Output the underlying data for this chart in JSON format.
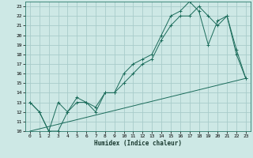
{
  "xlabel": "Humidex (Indice chaleur)",
  "background_color": "#cde8e5",
  "grid_color": "#a8ccca",
  "line_color": "#1a6b5a",
  "xlim": [
    -0.5,
    23.5
  ],
  "ylim": [
    10,
    23.5
  ],
  "xticks": [
    0,
    1,
    2,
    3,
    4,
    5,
    6,
    7,
    8,
    9,
    10,
    11,
    12,
    13,
    14,
    15,
    16,
    17,
    18,
    19,
    20,
    21,
    22,
    23
  ],
  "yticks": [
    10,
    11,
    12,
    13,
    14,
    15,
    16,
    17,
    18,
    19,
    20,
    21,
    22,
    23
  ],
  "line1_x": [
    0,
    1,
    2,
    3,
    4,
    5,
    6,
    7,
    8,
    9,
    10,
    11,
    12,
    13,
    14,
    15,
    16,
    17,
    18,
    19,
    20,
    21,
    22,
    23
  ],
  "line1_y": [
    13,
    12,
    10,
    13,
    12,
    13,
    13,
    12,
    14,
    14,
    16,
    17,
    17.5,
    18,
    20,
    22,
    22.5,
    23.5,
    22.5,
    19,
    21.5,
    22,
    18,
    15.5
  ],
  "line2_x": [
    0,
    1,
    2,
    3,
    4,
    5,
    6,
    7,
    8,
    9,
    10,
    11,
    12,
    13,
    14,
    15,
    16,
    17,
    18,
    19,
    20,
    21,
    22,
    23
  ],
  "line2_y": [
    13,
    12,
    10,
    10,
    12,
    13.5,
    13,
    12.5,
    14,
    14,
    15,
    16,
    17,
    17.5,
    19.5,
    21,
    22,
    22,
    23,
    22,
    21,
    22,
    18.5,
    15.5
  ],
  "line3_x": [
    0,
    23
  ],
  "line3_y": [
    10,
    15.5
  ]
}
